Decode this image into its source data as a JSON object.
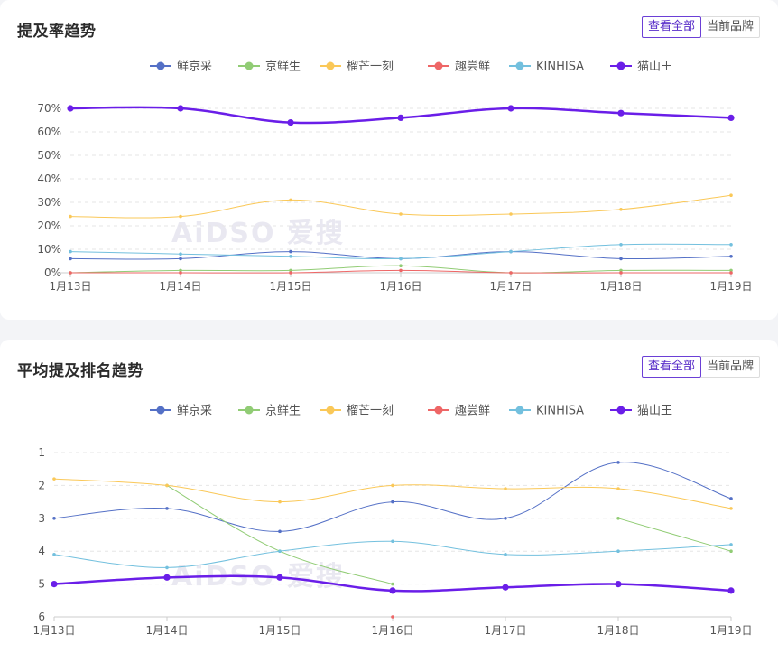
{
  "chart_data": [
    {
      "type": "line",
      "title": "提及率趋势",
      "buttons": [
        "查看全部",
        "当前品牌"
      ],
      "categories": [
        "1月13日",
        "1月14日",
        "1月15日",
        "1月16日",
        "1月17日",
        "1月18日",
        "1月19日"
      ],
      "yticks": [
        "0%",
        "10%",
        "20%",
        "30%",
        "40%",
        "50%",
        "60%",
        "70%"
      ],
      "ylim": [
        0,
        70
      ],
      "grid": true,
      "legend_position": "top",
      "series": [
        {
          "name": "鲜京采",
          "color": "#5470c6",
          "values": [
            6,
            6,
            9,
            6,
            9,
            6,
            7
          ]
        },
        {
          "name": "京鲜生",
          "color": "#91cc75",
          "values": [
            0,
            1,
            1,
            3,
            0,
            1,
            1
          ]
        },
        {
          "name": "榴芒一刻",
          "color": "#fac858",
          "values": [
            24,
            24,
            31,
            25,
            25,
            27,
            33
          ]
        },
        {
          "name": "趣尝鲜",
          "color": "#ee6666",
          "values": [
            0,
            0,
            0,
            1,
            0,
            0,
            0
          ]
        },
        {
          "name": "KINHISA",
          "color": "#73c0de",
          "values": [
            9,
            8,
            7,
            6,
            9,
            12,
            12
          ]
        },
        {
          "name": "猫山王",
          "color": "#6a1ee8",
          "values": [
            70,
            70,
            64,
            66,
            70,
            68,
            66
          ],
          "bold": true
        }
      ]
    },
    {
      "type": "line",
      "title": "平均提及排名趋势",
      "buttons": [
        "查看全部",
        "当前品牌"
      ],
      "categories": [
        "1月13日",
        "1月14日",
        "1月15日",
        "1月16日",
        "1月17日",
        "1月18日",
        "1月19日"
      ],
      "yticks": [
        "1",
        "2",
        "3",
        "4",
        "5",
        "6"
      ],
      "ylim": [
        1,
        6
      ],
      "y_inverted": true,
      "grid": true,
      "legend_position": "top",
      "series": [
        {
          "name": "鲜京采",
          "color": "#5470c6",
          "values": [
            3.0,
            2.7,
            3.4,
            2.5,
            3.0,
            1.3,
            2.4
          ]
        },
        {
          "name": "京鲜生",
          "color": "#91cc75",
          "values": [
            null,
            2.0,
            4.0,
            5.0,
            null,
            3.0,
            4.0
          ]
        },
        {
          "name": "榴芒一刻",
          "color": "#fac858",
          "values": [
            1.8,
            2.0,
            2.5,
            2.0,
            2.1,
            2.1,
            2.7
          ]
        },
        {
          "name": "趣尝鲜",
          "color": "#ee6666",
          "values": [
            null,
            null,
            null,
            6.0,
            null,
            null,
            null
          ]
        },
        {
          "name": "KINHISA",
          "color": "#73c0de",
          "values": [
            4.1,
            4.5,
            4.0,
            3.7,
            4.1,
            4.0,
            3.8
          ]
        },
        {
          "name": "猫山王",
          "color": "#6a1ee8",
          "values": [
            5.0,
            4.8,
            4.8,
            5.2,
            5.1,
            5.0,
            5.2
          ],
          "bold": true
        }
      ]
    }
  ],
  "watermark": "AiDSO 爱搜"
}
